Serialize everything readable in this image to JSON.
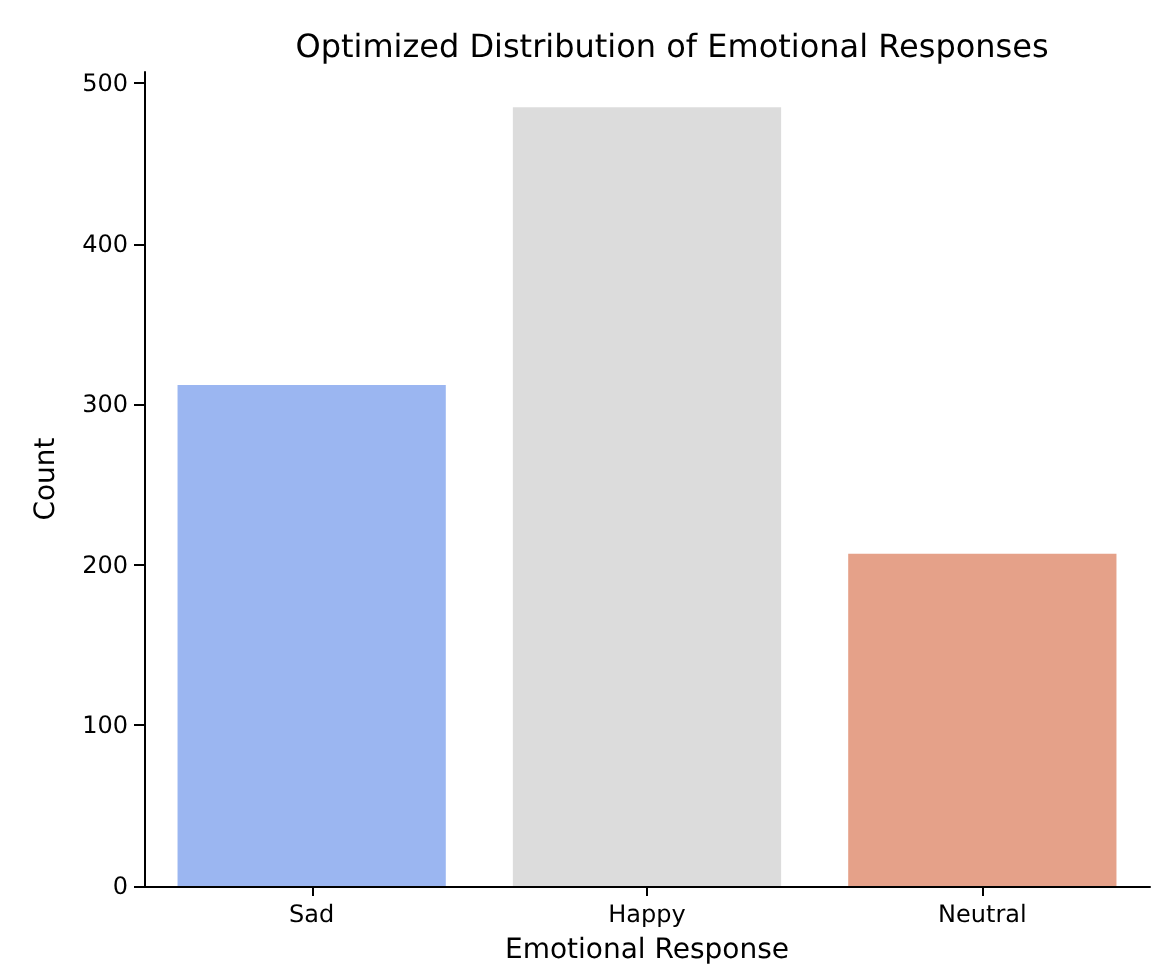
{
  "chart_data": {
    "type": "bar",
    "title": "Optimized Distribution of Emotional Responses",
    "xlabel": "Emotional Response",
    "ylabel": "Count",
    "categories": [
      "Sad",
      "Happy",
      "Neutral"
    ],
    "values": [
      312,
      485,
      207
    ],
    "colors": [
      "#9bb6f1",
      "#dcdcdc",
      "#e5a189"
    ],
    "ylim": [
      0,
      507
    ],
    "yticks": [
      0,
      100,
      200,
      300,
      400,
      500
    ],
    "grid": false
  }
}
